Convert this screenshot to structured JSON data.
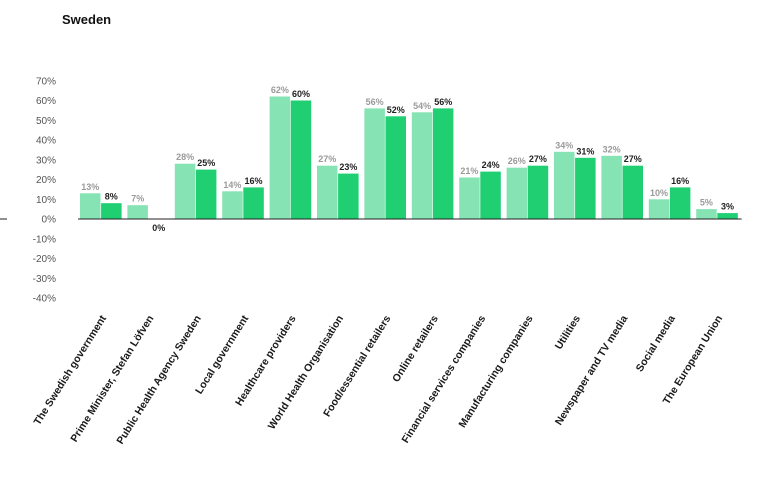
{
  "title": "Sweden",
  "chart_data": {
    "type": "bar",
    "title": "Sweden",
    "categories": [
      "The Swedish government",
      "Prime Minister, Stefan Löfven",
      "Public Health Agency Sweden",
      "Local government",
      "Healthcare providers",
      "World Health Organisation",
      "Food/essential retailers",
      "Online retailers",
      "Financial services companies",
      "Manufacturing companies",
      "Utilities",
      "Newspaper and TV media",
      "Social media",
      "The European Union"
    ],
    "series": [
      {
        "values": [
          13,
          7,
          28,
          14,
          62,
          27,
          56,
          54,
          21,
          26,
          34,
          32,
          10,
          5
        ],
        "color": "#86e3b4"
      },
      {
        "values": [
          8,
          0,
          25,
          16,
          60,
          23,
          52,
          56,
          24,
          27,
          31,
          27,
          16,
          3
        ],
        "color": "#1fcf72"
      }
    ],
    "yticks": [
      "70%",
      "60%",
      "50%",
      "40%",
      "30%",
      "20%",
      "10%",
      "0%",
      "-10%",
      "-20%",
      "-30%",
      "-40%"
    ],
    "ylim": [
      -40,
      70
    ],
    "unit": "%",
    "grid": false,
    "legend": "none"
  }
}
